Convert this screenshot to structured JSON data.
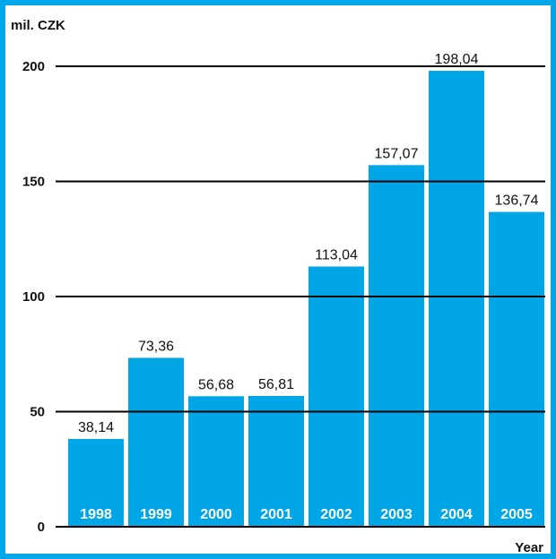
{
  "chart_data": {
    "type": "bar",
    "ylabel": "mil. CZK",
    "xlabel": "Year",
    "categories": [
      "1998",
      "1999",
      "2000",
      "2001",
      "2002",
      "2003",
      "2004",
      "2005"
    ],
    "values": [
      38.14,
      73.36,
      56.68,
      56.81,
      113.04,
      157.07,
      198.04,
      136.74
    ],
    "value_labels": [
      "38,14",
      "73,36",
      "56,68",
      "56,81",
      "113,04",
      "157,07",
      "198,04",
      "136,74"
    ],
    "ylim": [
      0,
      200
    ],
    "yticks": [
      0,
      50,
      100,
      150,
      200
    ],
    "ytick_labels": [
      "0",
      "50",
      "100",
      "150",
      "200"
    ],
    "grid": true,
    "colors": {
      "bar": "#00a6e6",
      "frame": "#00a6e6",
      "grid": "#000000",
      "text": "#111111"
    }
  }
}
